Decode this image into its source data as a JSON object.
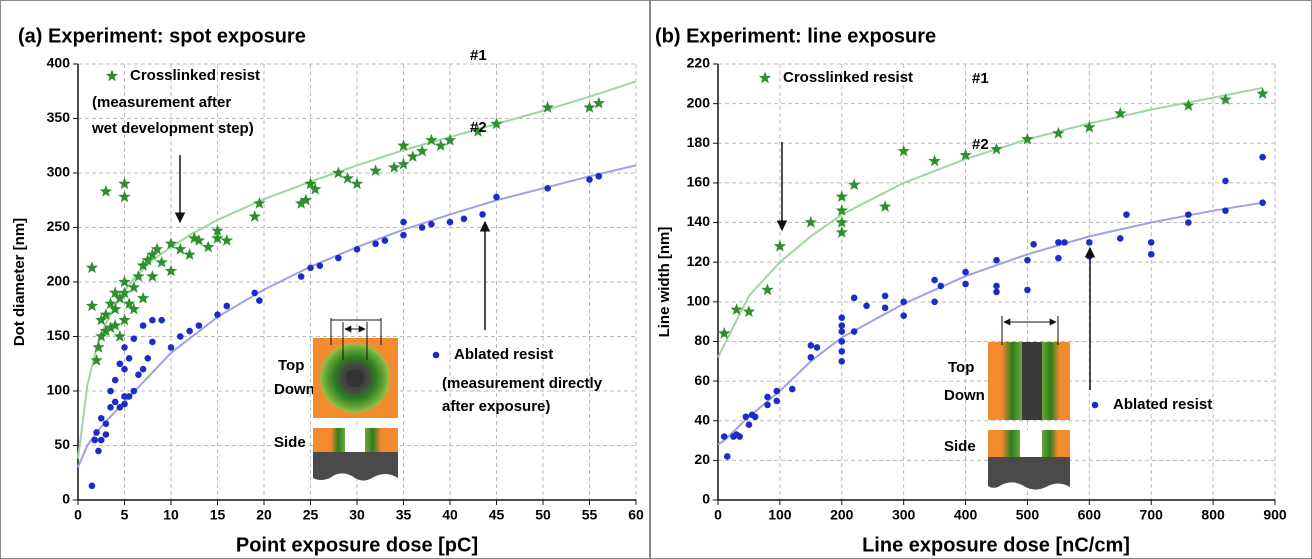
{
  "chart_data": [
    {
      "type": "scatter",
      "title": "(a) Experiment: spot exposure",
      "x_label": "Point exposure dose [pC]",
      "y_label": "Dot diameter [nm]",
      "xlim": [
        0,
        60
      ],
      "ylim": [
        0,
        400
      ],
      "xticks": [
        0,
        5,
        10,
        15,
        20,
        25,
        30,
        35,
        40,
        45,
        50,
        55,
        60
      ],
      "yticks": [
        0,
        50,
        100,
        150,
        200,
        250,
        300,
        350,
        400
      ],
      "grid": true,
      "series": [
        {
          "name": "Crosslinked resist",
          "color": "#2f8f2f",
          "marker": "star",
          "x": [
            1.5,
            1.5,
            2,
            2.2,
            2.5,
            2.5,
            3,
            3,
            3,
            3.5,
            3.5,
            4,
            4,
            4,
            4.5,
            4.5,
            5,
            5,
            5,
            5,
            5,
            5.5,
            6,
            6,
            6.5,
            7,
            7,
            7.5,
            8,
            8,
            8.5,
            9,
            10,
            10,
            11,
            12,
            12.5,
            13,
            14,
            15,
            15,
            16,
            19,
            19.5,
            24,
            24.5,
            25,
            25.5,
            28,
            29,
            30,
            32,
            34,
            35,
            35,
            36,
            37,
            38,
            39,
            40,
            43,
            45,
            50.5,
            55,
            56
          ],
          "values": [
            213,
            178,
            128,
            140,
            150,
            165,
            283,
            155,
            170,
            158,
            180,
            160,
            175,
            190,
            150,
            185,
            290,
            278,
            165,
            190,
            200,
            180,
            175,
            195,
            205,
            215,
            185,
            220,
            225,
            205,
            230,
            218,
            235,
            210,
            230,
            225,
            240,
            238,
            232,
            240,
            247,
            238,
            260,
            272,
            272,
            275,
            290,
            285,
            300,
            295,
            290,
            302,
            305,
            325,
            308,
            315,
            320,
            330,
            325,
            330,
            338,
            345,
            360,
            360,
            364
          ]
        },
        {
          "name": "Ablated resist",
          "color": "#1c2cc8",
          "marker": "circle",
          "x": [
            1.5,
            1.8,
            2,
            2.2,
            2.5,
            2.5,
            3,
            3,
            3.5,
            3.5,
            4,
            4,
            4.5,
            4.5,
            5,
            5,
            5,
            5,
            5.5,
            5.5,
            6,
            6,
            6.5,
            7,
            7,
            7.5,
            8,
            8,
            9,
            10,
            11,
            12,
            13,
            15,
            16,
            19,
            19.5,
            24,
            25,
            26,
            28,
            30,
            32,
            33,
            35,
            35,
            37,
            38,
            40,
            41.5,
            43.5,
            45,
            50.5,
            55,
            56
          ],
          "values": [
            13,
            55,
            62,
            45,
            75,
            55,
            60,
            70,
            85,
            100,
            90,
            110,
            125,
            85,
            95,
            120,
            140,
            88,
            130,
            95,
            148,
            100,
            115,
            160,
            120,
            130,
            145,
            165,
            165,
            140,
            150,
            155,
            160,
            170,
            178,
            190,
            183,
            205,
            213,
            215,
            222,
            230,
            235,
            238,
            243,
            255,
            250,
            253,
            255,
            258,
            262,
            278,
            286,
            294,
            297
          ]
        }
      ],
      "fits": [
        {
          "color": "#9fd59f",
          "x": [
            0,
            1,
            2,
            3,
            4,
            5,
            6,
            8,
            10,
            12,
            15,
            20,
            25,
            30,
            35,
            40,
            45,
            50,
            55,
            60
          ],
          "values": [
            38,
            105,
            140,
            162,
            178,
            192,
            203,
            220,
            232,
            243,
            257,
            276,
            292,
            307,
            321,
            333,
            345,
            357,
            370,
            384
          ]
        },
        {
          "color": "#a0a0e4",
          "x": [
            0,
            1,
            2,
            3,
            5,
            7,
            10,
            15,
            20,
            25,
            30,
            35,
            40,
            45,
            50,
            55,
            60
          ],
          "values": [
            30,
            50,
            62,
            72,
            90,
            108,
            135,
            168,
            193,
            214,
            232,
            248,
            262,
            275,
            286,
            297,
            307
          ]
        }
      ],
      "annotations": [
        "#1",
        "#2",
        "(measurement after",
        "wet development step)",
        "(measurement directly",
        "after exposure)",
        "Top",
        "Down",
        "Side"
      ]
    },
    {
      "type": "scatter",
      "title": "(b) Experiment: line exposure",
      "x_label": "Line exposure dose [nC/cm]",
      "y_label": "Line width [nm]",
      "xlim": [
        0,
        900
      ],
      "ylim": [
        0,
        220
      ],
      "xticks": [
        0,
        100,
        200,
        300,
        400,
        500,
        600,
        700,
        800,
        900
      ],
      "yticks": [
        0,
        20,
        40,
        60,
        80,
        100,
        120,
        140,
        160,
        180,
        200,
        220
      ],
      "grid": true,
      "series": [
        {
          "name": "Crosslinked resist",
          "color": "#2f8f2f",
          "marker": "star",
          "x": [
            10,
            30,
            50,
            80,
            100,
            150,
            200,
            200,
            200,
            200,
            220,
            270,
            300,
            350,
            400,
            450,
            500,
            550,
            600,
            650,
            760,
            820,
            880
          ],
          "values": [
            84,
            96,
            95,
            106,
            128,
            140,
            153,
            146,
            140,
            135,
            159,
            148,
            176,
            171,
            174,
            177,
            182,
            185,
            188,
            195,
            199,
            202,
            205
          ]
        },
        {
          "name": "Ablated resist",
          "color": "#1c2cc8",
          "marker": "circle",
          "x": [
            10,
            15,
            25,
            30,
            35,
            45,
            50,
            55,
            60,
            80,
            80,
            95,
            95,
            120,
            150,
            150,
            160,
            200,
            200,
            200,
            200,
            200,
            200,
            220,
            220,
            240,
            270,
            270,
            300,
            300,
            350,
            350,
            360,
            400,
            400,
            450,
            450,
            450,
            500,
            500,
            510,
            550,
            550,
            560,
            600,
            600,
            650,
            660,
            700,
            700,
            760,
            760,
            820,
            820,
            880,
            880
          ],
          "values": [
            32,
            22,
            32,
            33,
            32,
            42,
            38,
            43,
            42,
            48,
            52,
            55,
            50,
            56,
            72,
            78,
            77,
            92,
            88,
            85,
            80,
            75,
            70,
            102,
            85,
            98,
            97,
            103,
            100,
            93,
            100,
            111,
            108,
            115,
            109,
            105,
            108,
            121,
            106,
            121,
            129,
            130,
            122,
            130,
            123,
            130,
            132,
            144,
            130,
            124,
            144,
            140,
            146,
            161,
            150,
            173
          ]
        }
      ],
      "fits": [
        {
          "color": "#9fd59f",
          "x": [
            0,
            50,
            100,
            150,
            200,
            300,
            400,
            500,
            600,
            700,
            800,
            880
          ],
          "values": [
            72,
            103,
            120,
            133,
            144,
            160,
            172,
            182,
            190,
            197,
            203,
            208
          ]
        },
        {
          "color": "#a0a0e4",
          "x": [
            0,
            10,
            50,
            100,
            150,
            200,
            300,
            400,
            500,
            600,
            700,
            800,
            880
          ],
          "values": [
            28,
            30,
            42,
            55,
            70,
            82,
            99,
            113,
            124,
            133,
            140,
            146,
            150
          ]
        }
      ],
      "annotations": [
        "#1",
        "#2",
        "Top",
        "Down",
        "Side"
      ]
    }
  ]
}
